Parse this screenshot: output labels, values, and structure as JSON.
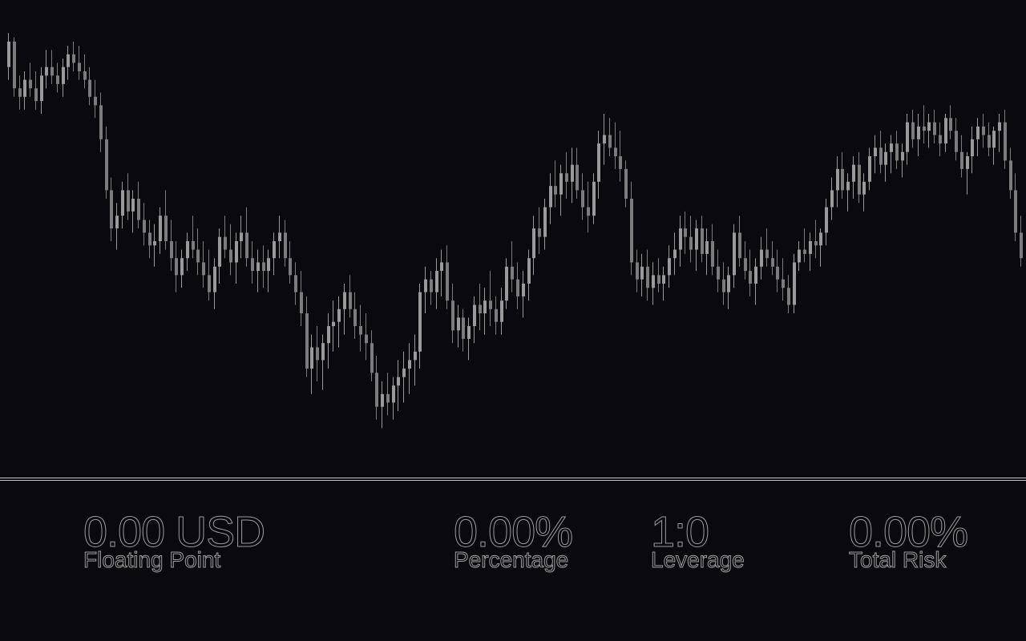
{
  "colors": {
    "background": "#0a0a0e",
    "candle": "#9a9a9a",
    "candle_down": "#7c7c7c",
    "text": "#9c9c9c",
    "divider": "#c8c8c8"
  },
  "stats": {
    "floating_point": {
      "value": "0.00 USD",
      "label": "Floating Point"
    },
    "percentage": {
      "value": "0.00%",
      "label": "Percentage"
    },
    "leverage": {
      "value": "1:0",
      "label": "Leverage"
    },
    "total_risk": {
      "value": "0.00%",
      "label": "Total Risk"
    }
  },
  "chart_data": {
    "type": "candlestick",
    "title": "",
    "xlabel": "",
    "ylabel": "",
    "grid": false,
    "legend": "none",
    "ylim": [
      0,
      100
    ],
    "series": [
      {
        "points": [
          [
            91,
            99,
            88,
            97
          ],
          [
            97,
            98,
            84,
            86
          ],
          [
            86,
            89,
            81,
            84
          ],
          [
            84,
            90,
            81,
            88
          ],
          [
            88,
            92,
            84,
            86
          ],
          [
            86,
            90,
            81,
            83
          ],
          [
            83,
            91,
            80,
            89
          ],
          [
            89,
            95,
            86,
            91
          ],
          [
            91,
            95,
            87,
            89
          ],
          [
            89,
            92,
            85,
            87
          ],
          [
            87,
            93,
            84,
            91
          ],
          [
            91,
            96,
            88,
            94
          ],
          [
            94,
            97,
            90,
            92
          ],
          [
            92,
            96,
            88,
            90
          ],
          [
            90,
            94,
            86,
            88
          ],
          [
            88,
            91,
            82,
            84
          ],
          [
            84,
            88,
            79,
            82
          ],
          [
            82,
            85,
            71,
            74
          ],
          [
            74,
            77,
            60,
            62
          ],
          [
            62,
            65,
            50,
            53
          ],
          [
            53,
            59,
            48,
            56
          ],
          [
            56,
            64,
            53,
            62
          ],
          [
            62,
            66,
            55,
            57
          ],
          [
            57,
            62,
            52,
            60
          ],
          [
            60,
            64,
            53,
            55
          ],
          [
            55,
            59,
            49,
            52
          ],
          [
            52,
            55,
            46,
            49
          ],
          [
            49,
            54,
            44,
            50
          ],
          [
            50,
            58,
            47,
            56
          ],
          [
            56,
            62,
            48,
            50
          ],
          [
            50,
            55,
            43,
            46
          ],
          [
            46,
            50,
            38,
            42
          ],
          [
            42,
            48,
            39,
            46
          ],
          [
            46,
            52,
            43,
            50
          ],
          [
            50,
            56,
            46,
            48
          ],
          [
            48,
            53,
            42,
            45
          ],
          [
            45,
            50,
            39,
            42
          ],
          [
            42,
            48,
            36,
            38
          ],
          [
            38,
            46,
            34,
            44
          ],
          [
            44,
            53,
            40,
            51
          ],
          [
            51,
            56,
            46,
            48
          ],
          [
            48,
            54,
            42,
            45
          ],
          [
            45,
            52,
            40,
            50
          ],
          [
            50,
            56,
            46,
            52
          ],
          [
            52,
            58,
            44,
            46
          ],
          [
            46,
            50,
            40,
            43
          ],
          [
            43,
            48,
            38,
            45
          ],
          [
            45,
            49,
            39,
            43
          ],
          [
            43,
            48,
            38,
            46
          ],
          [
            46,
            52,
            42,
            50
          ],
          [
            50,
            56,
            46,
            52
          ],
          [
            52,
            55,
            44,
            46
          ],
          [
            46,
            50,
            40,
            42
          ],
          [
            42,
            45,
            35,
            38
          ],
          [
            38,
            43,
            30,
            33
          ],
          [
            33,
            37,
            18,
            20
          ],
          [
            20,
            28,
            14,
            25
          ],
          [
            25,
            30,
            17,
            22
          ],
          [
            22,
            28,
            15,
            26
          ],
          [
            26,
            33,
            20,
            30
          ],
          [
            30,
            36,
            24,
            31
          ],
          [
            31,
            37,
            25,
            34
          ],
          [
            34,
            40,
            28,
            38
          ],
          [
            38,
            42,
            32,
            34
          ],
          [
            34,
            38,
            27,
            30
          ],
          [
            30,
            35,
            24,
            28
          ],
          [
            28,
            33,
            22,
            26
          ],
          [
            26,
            29,
            17,
            19
          ],
          [
            19,
            23,
            8,
            11
          ],
          [
            11,
            17,
            6,
            14
          ],
          [
            14,
            19,
            9,
            12
          ],
          [
            12,
            18,
            8,
            16
          ],
          [
            16,
            22,
            10,
            18
          ],
          [
            18,
            24,
            12,
            20
          ],
          [
            20,
            26,
            14,
            22
          ],
          [
            22,
            28,
            16,
            24
          ],
          [
            24,
            40,
            20,
            38
          ],
          [
            38,
            44,
            33,
            41
          ],
          [
            41,
            43,
            35,
            38
          ],
          [
            38,
            46,
            34,
            43
          ],
          [
            43,
            48,
            37,
            45
          ],
          [
            45,
            49,
            34,
            36
          ],
          [
            36,
            40,
            26,
            29
          ],
          [
            29,
            35,
            25,
            32
          ],
          [
            32,
            34,
            24,
            27
          ],
          [
            27,
            32,
            22,
            30
          ],
          [
            30,
            37,
            26,
            35
          ],
          [
            35,
            40,
            29,
            33
          ],
          [
            33,
            39,
            28,
            36
          ],
          [
            36,
            43,
            30,
            34
          ],
          [
            34,
            37,
            28,
            31
          ],
          [
            31,
            39,
            28,
            36
          ],
          [
            36,
            46,
            34,
            44
          ],
          [
            44,
            50,
            38,
            41
          ],
          [
            41,
            45,
            34,
            37
          ],
          [
            37,
            43,
            32,
            40
          ],
          [
            40,
            48,
            36,
            46
          ],
          [
            46,
            56,
            42,
            53
          ],
          [
            53,
            58,
            47,
            51
          ],
          [
            51,
            60,
            48,
            58
          ],
          [
            58,
            66,
            54,
            63
          ],
          [
            63,
            69,
            58,
            61
          ],
          [
            61,
            68,
            56,
            66
          ],
          [
            66,
            71,
            60,
            64
          ],
          [
            64,
            72,
            59,
            68
          ],
          [
            68,
            72,
            60,
            62
          ],
          [
            62,
            66,
            55,
            58
          ],
          [
            58,
            64,
            52,
            56
          ],
          [
            56,
            66,
            54,
            64
          ],
          [
            64,
            76,
            60,
            73
          ],
          [
            73,
            80,
            68,
            75
          ],
          [
            75,
            79,
            70,
            72
          ],
          [
            72,
            78,
            67,
            70
          ],
          [
            70,
            76,
            64,
            67
          ],
          [
            67,
            69,
            58,
            60
          ],
          [
            60,
            64,
            42,
            45
          ],
          [
            45,
            48,
            38,
            41
          ],
          [
            41,
            47,
            37,
            44
          ],
          [
            44,
            48,
            36,
            39
          ],
          [
            39,
            45,
            35,
            42
          ],
          [
            42,
            46,
            38,
            40
          ],
          [
            40,
            44,
            36,
            42
          ],
          [
            42,
            49,
            39,
            46
          ],
          [
            46,
            52,
            42,
            48
          ],
          [
            48,
            56,
            44,
            53
          ],
          [
            53,
            57,
            47,
            51
          ],
          [
            51,
            56,
            45,
            48
          ],
          [
            48,
            55,
            43,
            53
          ],
          [
            53,
            56,
            45,
            47
          ],
          [
            47,
            53,
            42,
            50
          ],
          [
            50,
            54,
            42,
            44
          ],
          [
            44,
            48,
            38,
            41
          ],
          [
            41,
            45,
            35,
            38
          ],
          [
            38,
            44,
            34,
            42
          ],
          [
            42,
            54,
            39,
            52
          ],
          [
            52,
            56,
            44,
            46
          ],
          [
            46,
            50,
            41,
            43
          ],
          [
            43,
            48,
            37,
            40
          ],
          [
            40,
            46,
            35,
            44
          ],
          [
            44,
            51,
            41,
            48
          ],
          [
            48,
            53,
            44,
            46
          ],
          [
            46,
            50,
            42,
            44
          ],
          [
            44,
            48,
            38,
            41
          ],
          [
            41,
            46,
            36,
            39
          ],
          [
            39,
            42,
            33,
            35
          ],
          [
            35,
            47,
            33,
            45
          ],
          [
            45,
            50,
            43,
            48
          ],
          [
            48,
            53,
            45,
            47
          ],
          [
            47,
            52,
            43,
            50
          ],
          [
            50,
            55,
            46,
            49
          ],
          [
            49,
            53,
            44,
            52
          ],
          [
            52,
            60,
            49,
            58
          ],
          [
            58,
            65,
            55,
            62
          ],
          [
            62,
            70,
            58,
            67
          ],
          [
            67,
            71,
            60,
            62
          ],
          [
            62,
            66,
            57,
            64
          ],
          [
            64,
            70,
            60,
            68
          ],
          [
            68,
            71,
            59,
            61
          ],
          [
            61,
            66,
            57,
            64
          ],
          [
            64,
            72,
            62,
            70
          ],
          [
            70,
            75,
            66,
            72
          ],
          [
            72,
            76,
            66,
            68
          ],
          [
            68,
            73,
            64,
            71
          ],
          [
            71,
            75,
            66,
            73
          ],
          [
            73,
            76,
            67,
            69
          ],
          [
            69,
            73,
            65,
            71
          ],
          [
            71,
            80,
            68,
            78
          ],
          [
            78,
            81,
            72,
            74
          ],
          [
            74,
            80,
            70,
            77
          ],
          [
            77,
            82,
            73,
            76
          ],
          [
            76,
            80,
            72,
            78
          ],
          [
            78,
            81,
            73,
            75
          ],
          [
            75,
            78,
            70,
            73
          ],
          [
            73,
            80,
            71,
            79
          ],
          [
            79,
            82,
            74,
            76
          ],
          [
            76,
            79,
            69,
            71
          ],
          [
            71,
            75,
            65,
            67
          ],
          [
            67,
            71,
            61,
            70
          ],
          [
            70,
            77,
            66,
            74
          ],
          [
            74,
            79,
            70,
            77
          ],
          [
            77,
            80,
            72,
            75
          ],
          [
            75,
            78,
            70,
            72
          ],
          [
            72,
            77,
            68,
            76
          ],
          [
            76,
            80,
            71,
            78
          ],
          [
            78,
            81,
            67,
            69
          ],
          [
            69,
            72,
            60,
            62
          ],
          [
            62,
            66,
            50,
            52
          ],
          [
            52,
            56,
            44,
            46
          ]
        ]
      }
    ]
  }
}
